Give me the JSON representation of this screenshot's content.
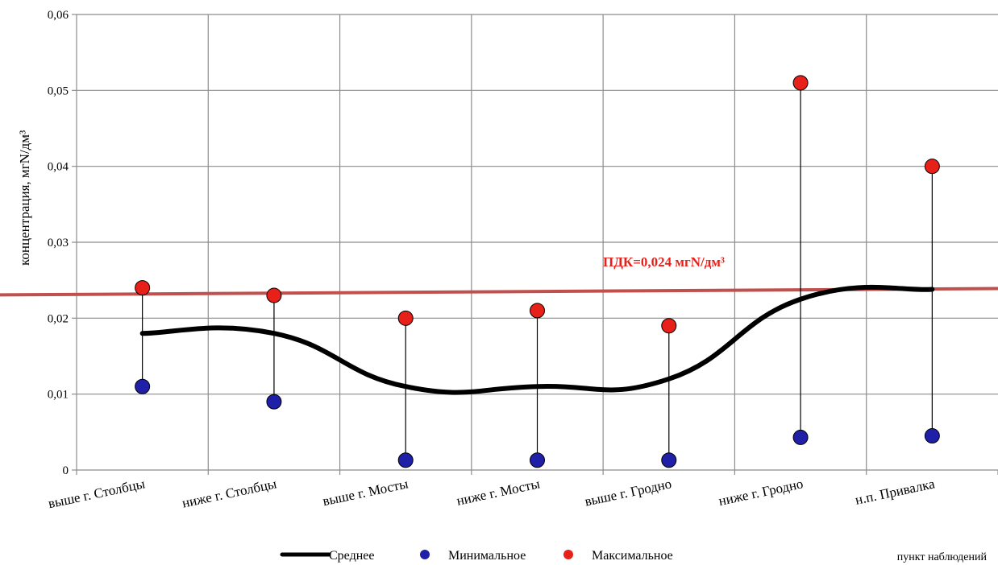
{
  "chart_data": {
    "type": "line",
    "categories": [
      "выше г. Столбцы",
      "ниже г. Столбцы",
      "выше г. Мосты",
      "ниже г. Мосты",
      "выше г. Гродно",
      "ниже г. Гродно",
      "н.п. Привалка"
    ],
    "series": [
      {
        "name": "Среднее",
        "kind": "line",
        "color": "#000000",
        "values": [
          0.018,
          0.018,
          0.011,
          0.011,
          0.012,
          0.0225,
          0.0238
        ]
      },
      {
        "name": "Минимальное",
        "kind": "marker",
        "color": "#1f1fa8",
        "values": [
          0.011,
          0.009,
          0.0013,
          0.0013,
          0.0013,
          0.0043,
          0.0045
        ]
      },
      {
        "name": "Максимальное",
        "kind": "marker",
        "color": "#e8201a",
        "values": [
          0.024,
          0.023,
          0.02,
          0.021,
          0.019,
          0.051,
          0.04
        ]
      }
    ],
    "ylabel": "концентрация, мгN/дм³",
    "xlabel": "пункт наблюдений",
    "ylim": [
      0,
      0.06
    ],
    "yticks": [
      "0",
      "0,01",
      "0,02",
      "0,03",
      "0,04",
      "0,05",
      "0,06"
    ],
    "reference_line": {
      "label": "ПДК=0,024 мгN/дм³",
      "color": "#c0504d",
      "value_start": 0.0231,
      "value_end": 0.0239
    },
    "grid": true,
    "legend_position": "bottom"
  }
}
